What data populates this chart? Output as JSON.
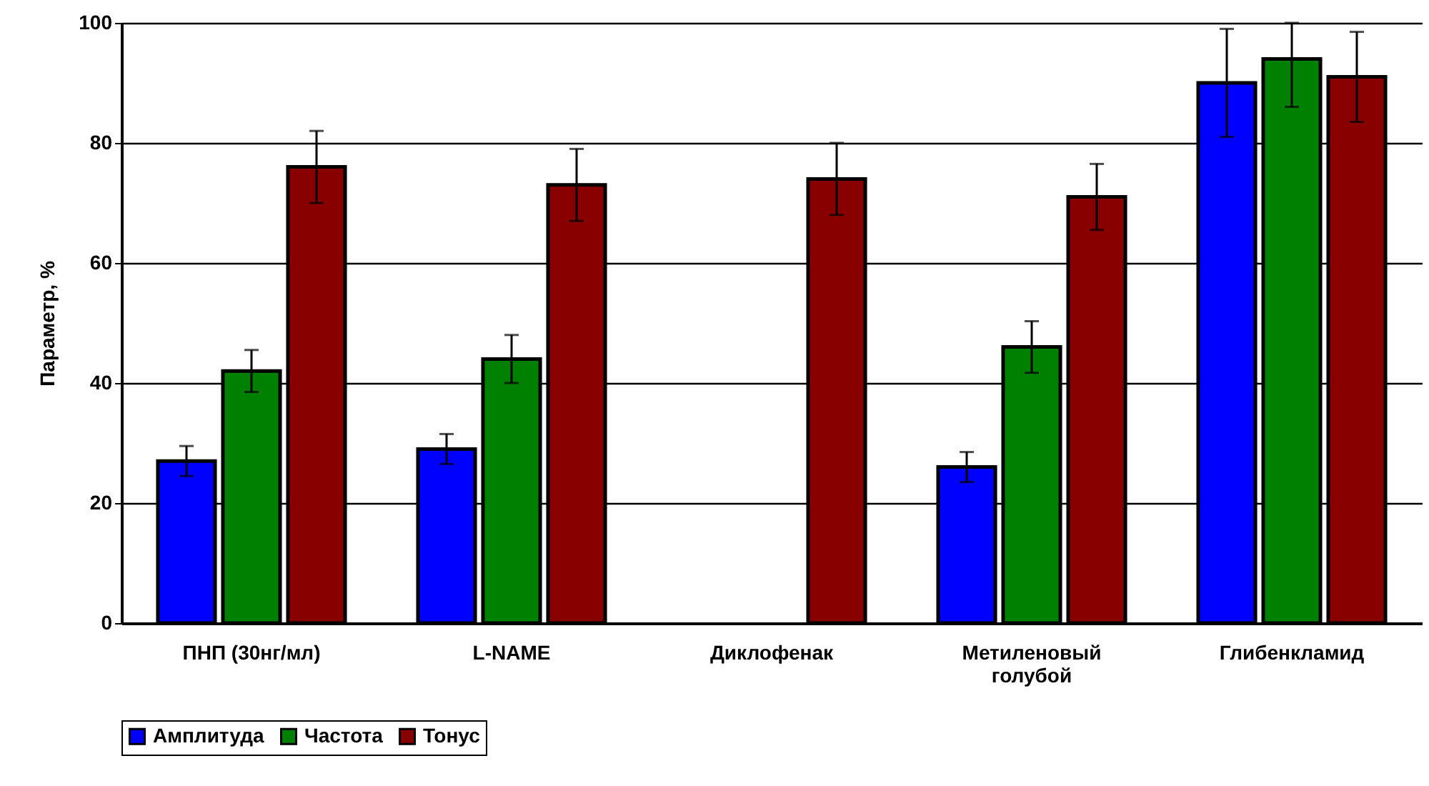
{
  "chart_data": {
    "type": "bar",
    "ylabel": "Параметр, %",
    "categories": [
      "ПНП (30нг/мл)",
      "L-NAME",
      "Диклофенак",
      "Метиленовый голубой",
      "Глибенкламид"
    ],
    "series": [
      {
        "name": "Амплитуда",
        "color": "#0000ff",
        "values": [
          27,
          29,
          null,
          26,
          90
        ],
        "errors": [
          2.5,
          2.5,
          null,
          2.5,
          9
        ]
      },
      {
        "name": "Частота",
        "color": "#008000",
        "values": [
          42,
          44,
          null,
          46,
          94
        ],
        "errors": [
          3.5,
          4,
          null,
          4.3,
          [
            86,
            100
          ]
        ]
      },
      {
        "name": "Тонус",
        "color": "#880000",
        "values": [
          76,
          73,
          74,
          71,
          91
        ],
        "errors": [
          6,
          6,
          6,
          5.5,
          7.5
        ]
      }
    ],
    "ylim": [
      0,
      100
    ],
    "yticks": [
      0,
      20,
      40,
      60,
      80,
      100
    ],
    "grid": "y",
    "legend": "bottom"
  }
}
